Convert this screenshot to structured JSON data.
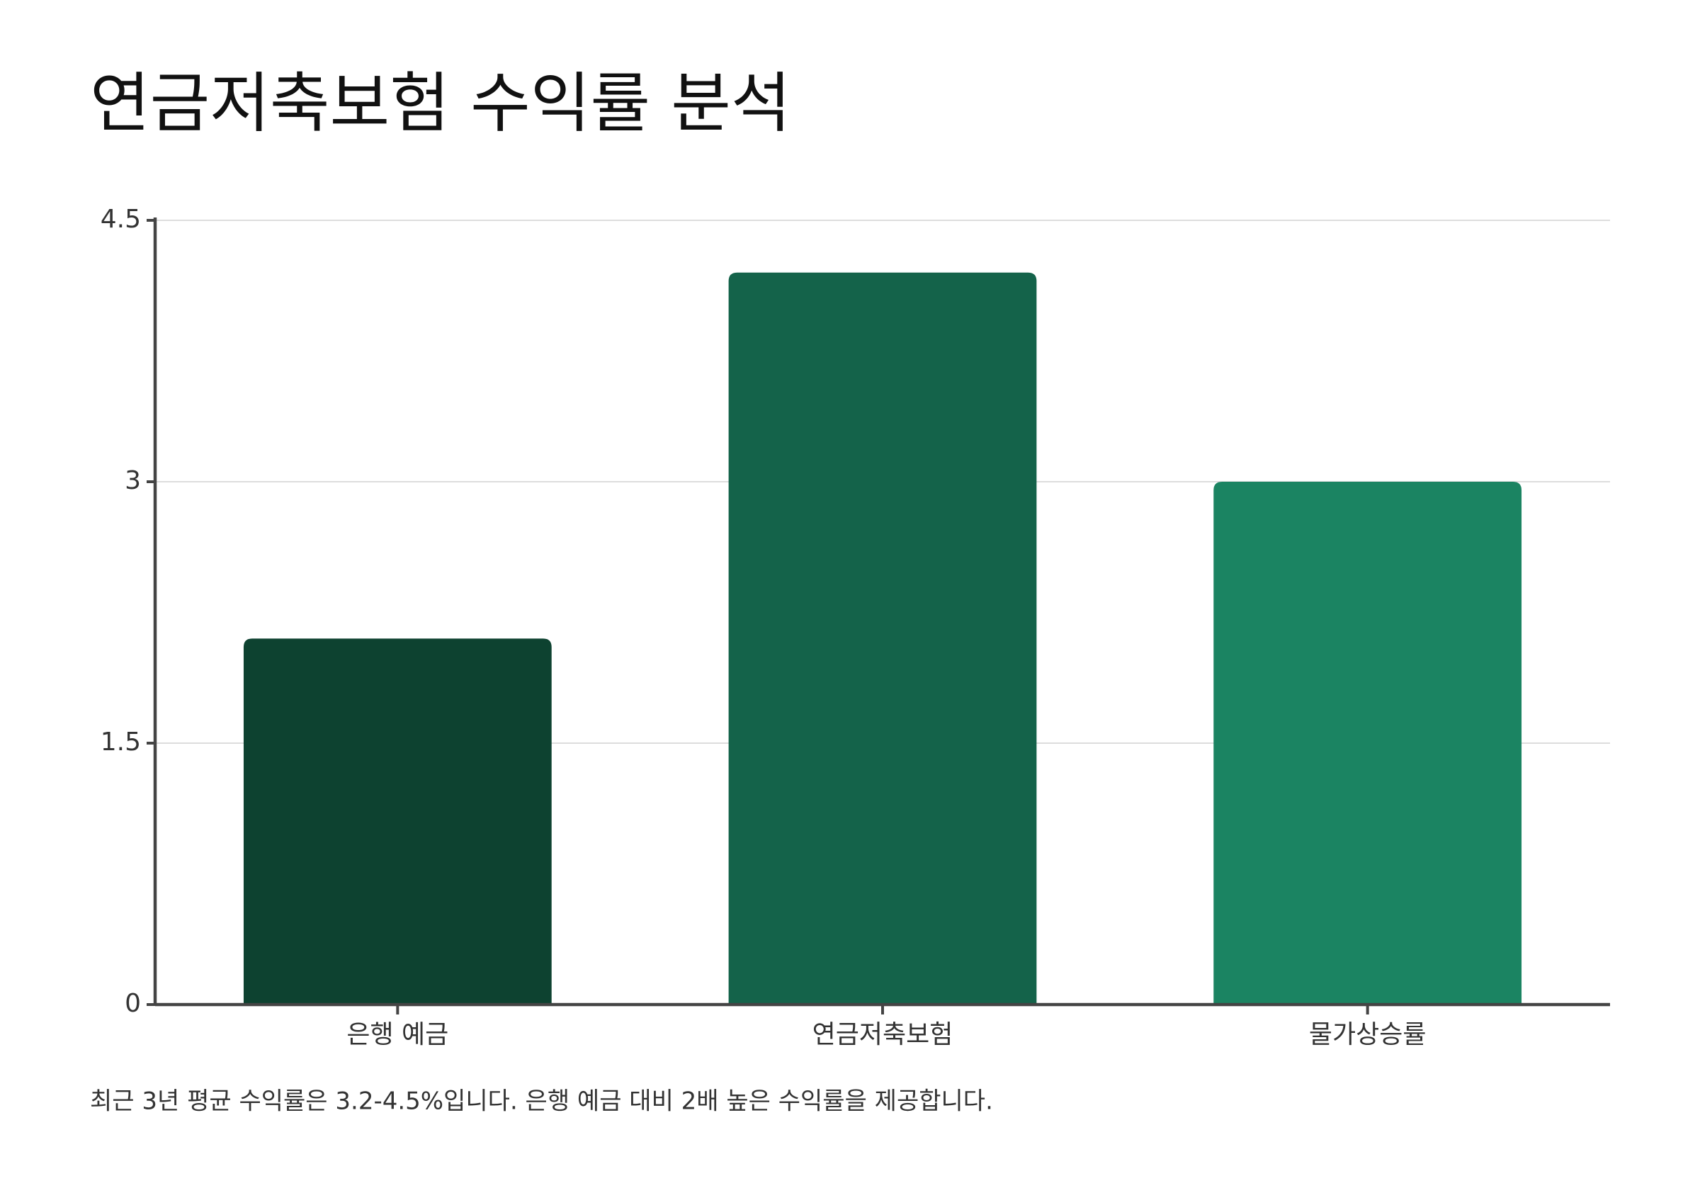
{
  "chart_data": {
    "type": "bar",
    "title": "연금저축보험 수익률 분석",
    "categories": [
      "은행 예금",
      "연금저축보험",
      "물가상승률"
    ],
    "values": [
      2.1,
      4.2,
      3.0
    ],
    "colors": [
      "#0d4230",
      "#14634a",
      "#1b8462"
    ],
    "ylim": [
      0,
      4.5
    ],
    "yticks": [
      0,
      1.5,
      3,
      4.5
    ],
    "grid": true,
    "note": "최근 3년 평균 수익률은 3.2-4.5%입니다. 은행 예금 대비 2배 높은 수익률을 제공합니다."
  }
}
